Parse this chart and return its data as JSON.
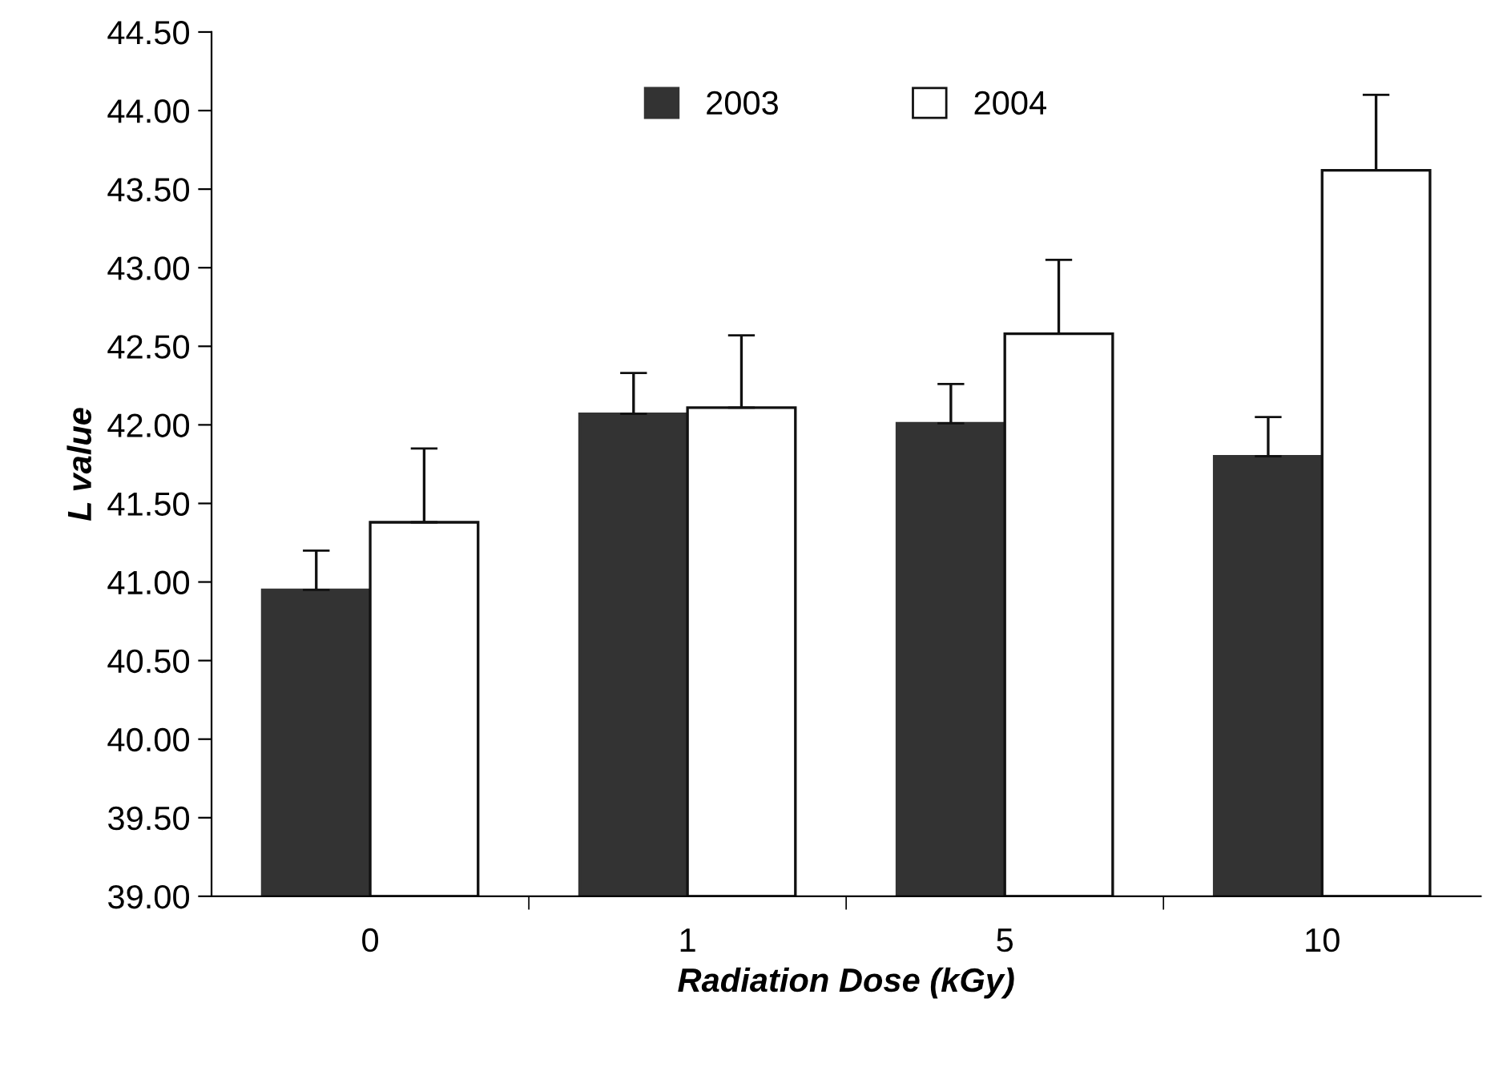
{
  "chart_data": {
    "type": "bar",
    "xlabel": "Radiation Dose (kGy)",
    "ylabel": "L value",
    "categories": [
      "0",
      "1",
      "5",
      "10"
    ],
    "series": [
      {
        "name": "2003",
        "color": "#333333",
        "values": [
          40.95,
          42.07,
          42.01,
          41.8
        ],
        "errors": [
          0.25,
          0.26,
          0.25,
          0.25
        ]
      },
      {
        "name": "2004",
        "color": "#ffffff",
        "values": [
          41.38,
          42.11,
          42.58,
          43.62
        ],
        "errors": [
          0.47,
          0.46,
          0.47,
          0.48
        ]
      }
    ],
    "ylim": [
      39.0,
      44.5
    ],
    "yticks": [
      {
        "value": 39.0,
        "label": "39.00"
      },
      {
        "value": 39.5,
        "label": "39.50"
      },
      {
        "value": 40.0,
        "label": "40.00"
      },
      {
        "value": 40.5,
        "label": "40.50"
      },
      {
        "value": 41.0,
        "label": "41.00"
      },
      {
        "value": 41.5,
        "label": "41.50"
      },
      {
        "value": 42.0,
        "label": "42.00"
      },
      {
        "value": 42.5,
        "label": "42.50"
      },
      {
        "value": 43.0,
        "label": "43.00"
      },
      {
        "value": 43.5,
        "label": "43.50"
      },
      {
        "value": 44.0,
        "label": "44.00"
      },
      {
        "value": 44.5,
        "label": "44.50"
      }
    ],
    "grid": false,
    "legend": "top"
  }
}
